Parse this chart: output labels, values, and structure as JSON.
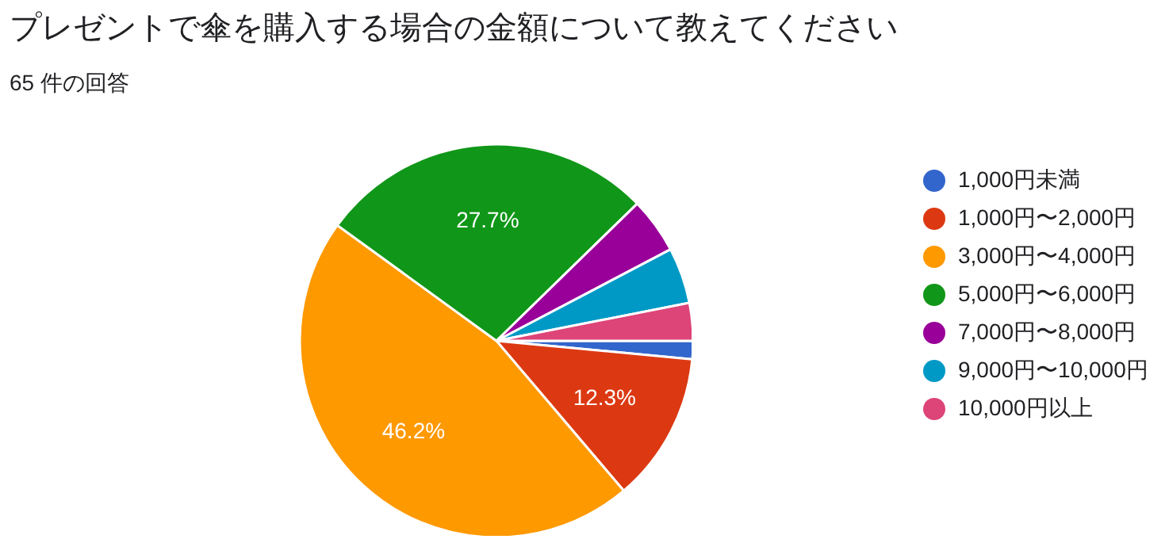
{
  "chart_data": {
    "type": "pie",
    "title": "プレゼントで傘を購入する場合の金額について教えてください",
    "subtitle": "65 件の回答",
    "categories": [
      "1,000円未満",
      "1,000円〜2,000円",
      "3,000円〜4,000円",
      "5,000円〜6,000円",
      "7,000円〜8,000円",
      "9,000円〜10,000円",
      "10,000円以上"
    ],
    "values": [
      1.5,
      12.3,
      46.2,
      27.7,
      4.6,
      4.6,
      3.1
    ],
    "colors": [
      "#3366cc",
      "#dc3912",
      "#ff9900",
      "#109618",
      "#990099",
      "#0099c6",
      "#dd4477"
    ],
    "value_labels": [
      null,
      "12.3%",
      "46.2%",
      "27.7%",
      null,
      null,
      null
    ],
    "legend": "right"
  }
}
